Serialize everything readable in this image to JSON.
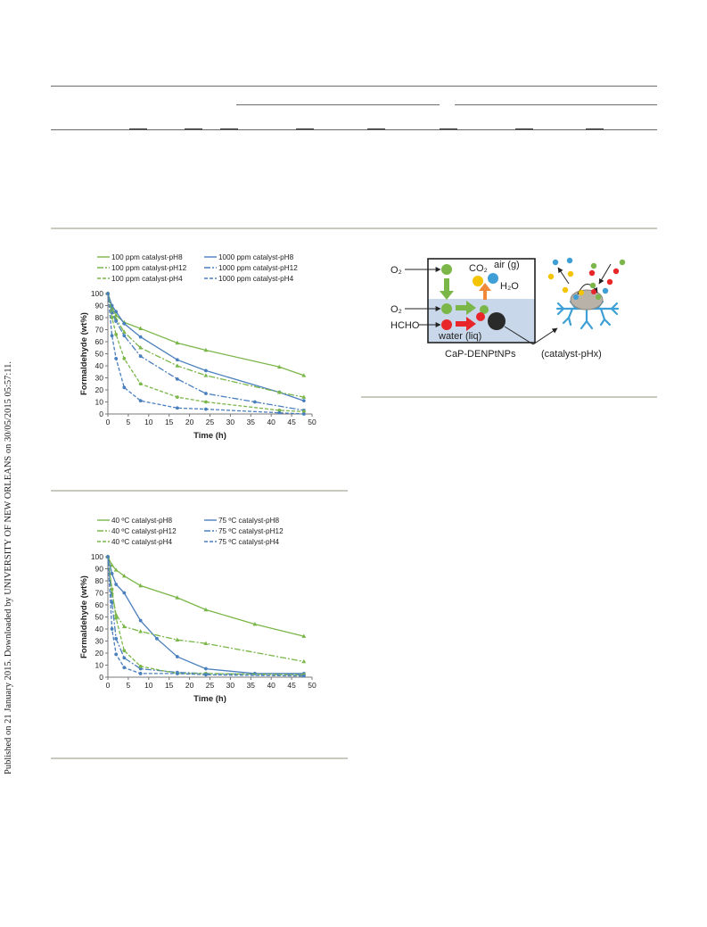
{
  "side_note": "Published on 21 January 2015. Downloaded by UNIVERSITY OF NEW ORLEANS on 30/05/2015 05:57:11.",
  "chart_data": [
    {
      "type": "scatter",
      "xlabel": "Time (h)",
      "ylabel": "Formaldehyde (wt%)",
      "xlim": [
        0,
        50
      ],
      "ylim": [
        0,
        100
      ],
      "xticks": [
        0,
        5,
        10,
        15,
        20,
        25,
        30,
        35,
        40,
        45,
        50
      ],
      "yticks": [
        0,
        10,
        20,
        30,
        40,
        50,
        60,
        70,
        80,
        90,
        100
      ],
      "grid": false,
      "legend": "top",
      "series": [
        {
          "name": "100 ppm catalyst-pH8",
          "color": "#7ab648",
          "dash": "solid",
          "x": [
            0,
            1,
            2,
            4,
            8,
            17,
            24,
            42,
            48
          ],
          "y": [
            100,
            88,
            82,
            76,
            71,
            59,
            53,
            39,
            32
          ]
        },
        {
          "name": "1000 ppm catalyst-pH8",
          "color": "#4a7fbd",
          "dash": "solid",
          "x": [
            0,
            1,
            2,
            4,
            8,
            17,
            24,
            42,
            48
          ],
          "y": [
            100,
            90,
            85,
            75,
            64,
            45,
            36,
            18,
            11
          ]
        },
        {
          "name": "100 ppm catalyst-pH12",
          "color": "#7ab648",
          "dash": "dashdot",
          "x": [
            0,
            1,
            2,
            4,
            8,
            17,
            24,
            42,
            48
          ],
          "y": [
            100,
            86,
            79,
            68,
            55,
            40,
            32,
            18,
            14
          ]
        },
        {
          "name": "1000 ppm catalyst-pH12",
          "color": "#4a7fbd",
          "dash": "dashdot",
          "x": [
            0,
            1,
            2,
            4,
            8,
            17,
            24,
            36,
            48
          ],
          "y": [
            100,
            84,
            77,
            65,
            48,
            29,
            17,
            10,
            3
          ]
        },
        {
          "name": "100 ppm catalyst-pH4",
          "color": "#7ab648",
          "dash": "dash",
          "x": [
            0,
            1,
            2,
            4,
            8,
            17,
            24,
            42,
            48
          ],
          "y": [
            100,
            80,
            66,
            46,
            25,
            14,
            10,
            3,
            2
          ]
        },
        {
          "name": "1000 ppm catalyst-pH4",
          "color": "#4a7fbd",
          "dash": "dash",
          "x": [
            0,
            1,
            2,
            4,
            8,
            17,
            24,
            42,
            48
          ],
          "y": [
            100,
            65,
            46,
            22,
            11,
            5,
            4,
            1,
            0
          ]
        }
      ]
    },
    {
      "type": "scatter",
      "xlabel": "Time (h)",
      "ylabel": "Formaldehyde (wt%)",
      "xlim": [
        0,
        50
      ],
      "ylim": [
        0,
        100
      ],
      "xticks": [
        0,
        5,
        10,
        15,
        20,
        25,
        30,
        35,
        40,
        45,
        50
      ],
      "yticks": [
        0,
        10,
        20,
        30,
        40,
        50,
        60,
        70,
        80,
        90,
        100
      ],
      "grid": false,
      "legend": "top",
      "series": [
        {
          "name": "40 ºC catalyst-pH8",
          "color": "#7ab648",
          "dash": "solid",
          "x": [
            0,
            1,
            2,
            4,
            8,
            17,
            24,
            36,
            48
          ],
          "y": [
            100,
            93,
            89,
            84,
            76,
            66,
            56,
            44,
            34
          ]
        },
        {
          "name": "75 ºC catalyst-pH8",
          "color": "#4a7fbd",
          "dash": "solid",
          "x": [
            0,
            1,
            2,
            4,
            8,
            12,
            17,
            24,
            36,
            48
          ],
          "y": [
            100,
            86,
            77,
            70,
            47,
            32,
            17,
            7,
            3,
            3
          ]
        },
        {
          "name": "40 ºC catalyst-pH12",
          "color": "#7ab648",
          "dash": "dashdot",
          "x": [
            0,
            1,
            2,
            4,
            8,
            17,
            24,
            48
          ],
          "y": [
            100,
            70,
            52,
            42,
            38,
            31,
            28,
            13
          ]
        },
        {
          "name": "75 ºC catalyst-pH12",
          "color": "#4a7fbd",
          "dash": "dashdot",
          "x": [
            0,
            1,
            2,
            4,
            8,
            17,
            24,
            48
          ],
          "y": [
            100,
            62,
            32,
            16,
            7,
            4,
            3,
            2
          ]
        },
        {
          "name": "40 ºC catalyst-pH4",
          "color": "#7ab648",
          "dash": "dash",
          "x": [
            0,
            1,
            2,
            4,
            8,
            17,
            24,
            48
          ],
          "y": [
            100,
            73,
            49,
            22,
            9,
            3,
            3,
            2
          ]
        },
        {
          "name": "75 ºC catalyst-pH4",
          "color": "#4a7fbd",
          "dash": "dash",
          "x": [
            0,
            1,
            2,
            4,
            8,
            17,
            24,
            48
          ],
          "y": [
            100,
            40,
            19,
            8,
            3,
            3,
            2,
            1
          ]
        }
      ]
    }
  ],
  "scheme": {
    "o2_top_label": "O₂",
    "o2_mid_label": "O₂",
    "hcho_label": "HCHO",
    "air_label": "air (g)",
    "co2_label": "CO₂",
    "h2o_label": "H₂O",
    "water_label": "water (liq)",
    "catalyst_label": "CaP-DENPtNPs",
    "catalyst_ph_label": "(catalyst-pHx)",
    "colors": {
      "green": "#7ab648",
      "yellow": "#f5c400",
      "blue": "#3d9fd6",
      "red": "#e8262a",
      "orange": "#f08a3a",
      "black": "#2a2a2a",
      "water": "#c8d8ea"
    }
  }
}
